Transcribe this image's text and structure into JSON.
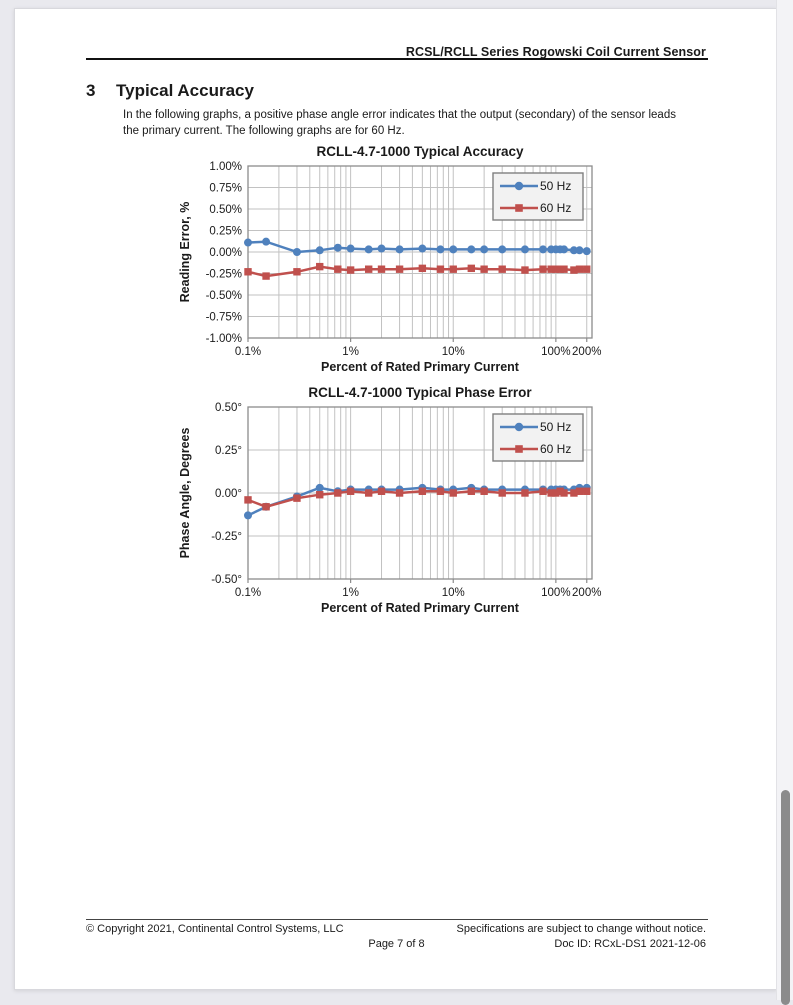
{
  "header": {
    "title": "RCSL/RCLL Series Rogowski Coil Current Sensor"
  },
  "section": {
    "number": "3",
    "title": "Typical Accuracy",
    "body": "In the following graphs, a positive phase angle error indicates that the output (secondary) of the sensor leads the primary current. The following graphs are for 60 Hz."
  },
  "footer": {
    "copyright": "© Copyright 2021, Continental Control Systems, LLC",
    "page_number": "Page 7 of 8",
    "notice": "Specifications are subject to change without notice.",
    "doc_id": "Doc ID: RCxL-DS1 2021-12-06"
  },
  "colors": {
    "series_50hz": "#4F81BD",
    "series_60hz": "#C0504D",
    "grid": "#c2c2c2",
    "plot_border": "#8c8c8c",
    "legend_bg": "#f2f2f2",
    "legend_border": "#7f7f7f",
    "text": "#1a1a1a",
    "scrollbar_thumb": "#8b8b8b"
  },
  "chart_data": [
    {
      "type": "line",
      "title": "RCLL-4.7-1000 Typical Accuracy",
      "xlabel": "Percent of Rated Primary Current",
      "ylabel": "Reading Error, %",
      "x_scale": "log",
      "grid": true,
      "legend_position": "top-right",
      "xlim": [
        0.1,
        225
      ],
      "ylim": [
        -1.0,
        1.0
      ],
      "x_ticks": [
        "0.1%",
        "1%",
        "10%",
        "100%",
        "200%"
      ],
      "x_tick_values": [
        0.1,
        1,
        10,
        100,
        200
      ],
      "y_ticks": [
        "1.00%",
        "0.75%",
        "0.50%",
        "0.25%",
        "0.00%",
        "-0.25%",
        "-0.50%",
        "-0.75%",
        "-1.00%"
      ],
      "y_tick_values": [
        1.0,
        0.75,
        0.5,
        0.25,
        0.0,
        -0.25,
        -0.5,
        -0.75,
        -1.0
      ],
      "x": [
        0.1,
        0.15,
        0.3,
        0.5,
        0.75,
        1,
        1.5,
        2,
        3,
        5,
        7.5,
        10,
        15,
        20,
        30,
        50,
        75,
        90,
        100,
        110,
        120,
        150,
        170,
        200
      ],
      "series": [
        {
          "name": "50 Hz",
          "color": "#4F81BD",
          "marker": "circle",
          "values": [
            0.11,
            0.12,
            0.0,
            0.02,
            0.05,
            0.04,
            0.03,
            0.04,
            0.03,
            0.04,
            0.03,
            0.03,
            0.03,
            0.03,
            0.03,
            0.03,
            0.03,
            0.03,
            0.03,
            0.03,
            0.03,
            0.02,
            0.02,
            0.01
          ]
        },
        {
          "name": "60 Hz",
          "color": "#C0504D",
          "marker": "square",
          "values": [
            -0.23,
            -0.28,
            -0.23,
            -0.17,
            -0.2,
            -0.21,
            -0.2,
            -0.2,
            -0.2,
            -0.19,
            -0.2,
            -0.2,
            -0.19,
            -0.2,
            -0.2,
            -0.21,
            -0.2,
            -0.2,
            -0.2,
            -0.2,
            -0.2,
            -0.21,
            -0.2,
            -0.2
          ]
        }
      ]
    },
    {
      "type": "line",
      "title": "RCLL-4.7-1000 Typical Phase Error",
      "xlabel": "Percent of Rated Primary Current",
      "ylabel": "Phase Angle, Degrees",
      "x_scale": "log",
      "grid": true,
      "legend_position": "top-right",
      "xlim": [
        0.1,
        225
      ],
      "ylim": [
        -0.5,
        0.5
      ],
      "x_ticks": [
        "0.1%",
        "1%",
        "10%",
        "100%",
        "200%"
      ],
      "x_tick_values": [
        0.1,
        1,
        10,
        100,
        200
      ],
      "y_ticks": [
        "0.50°",
        "0.25°",
        "0.00°",
        "-0.25°",
        "-0.50°"
      ],
      "y_tick_values": [
        0.5,
        0.25,
        0.0,
        -0.25,
        -0.5
      ],
      "x": [
        0.1,
        0.15,
        0.3,
        0.5,
        0.75,
        1,
        1.5,
        2,
        3,
        5,
        7.5,
        10,
        15,
        20,
        30,
        50,
        75,
        90,
        100,
        110,
        120,
        150,
        170,
        200
      ],
      "series": [
        {
          "name": "50 Hz",
          "color": "#4F81BD",
          "marker": "circle",
          "values": [
            -0.13,
            -0.08,
            -0.02,
            0.03,
            0.01,
            0.02,
            0.02,
            0.02,
            0.02,
            0.03,
            0.02,
            0.02,
            0.03,
            0.02,
            0.02,
            0.02,
            0.02,
            0.02,
            0.02,
            0.02,
            0.02,
            0.02,
            0.03,
            0.03
          ]
        },
        {
          "name": "60 Hz",
          "color": "#C0504D",
          "marker": "square",
          "values": [
            -0.04,
            -0.08,
            -0.03,
            -0.01,
            0.0,
            0.01,
            0.0,
            0.01,
            0.0,
            0.01,
            0.01,
            0.0,
            0.01,
            0.01,
            0.0,
            0.0,
            0.01,
            0.0,
            0.0,
            0.01,
            0.0,
            0.0,
            0.01,
            0.01
          ]
        }
      ]
    }
  ]
}
